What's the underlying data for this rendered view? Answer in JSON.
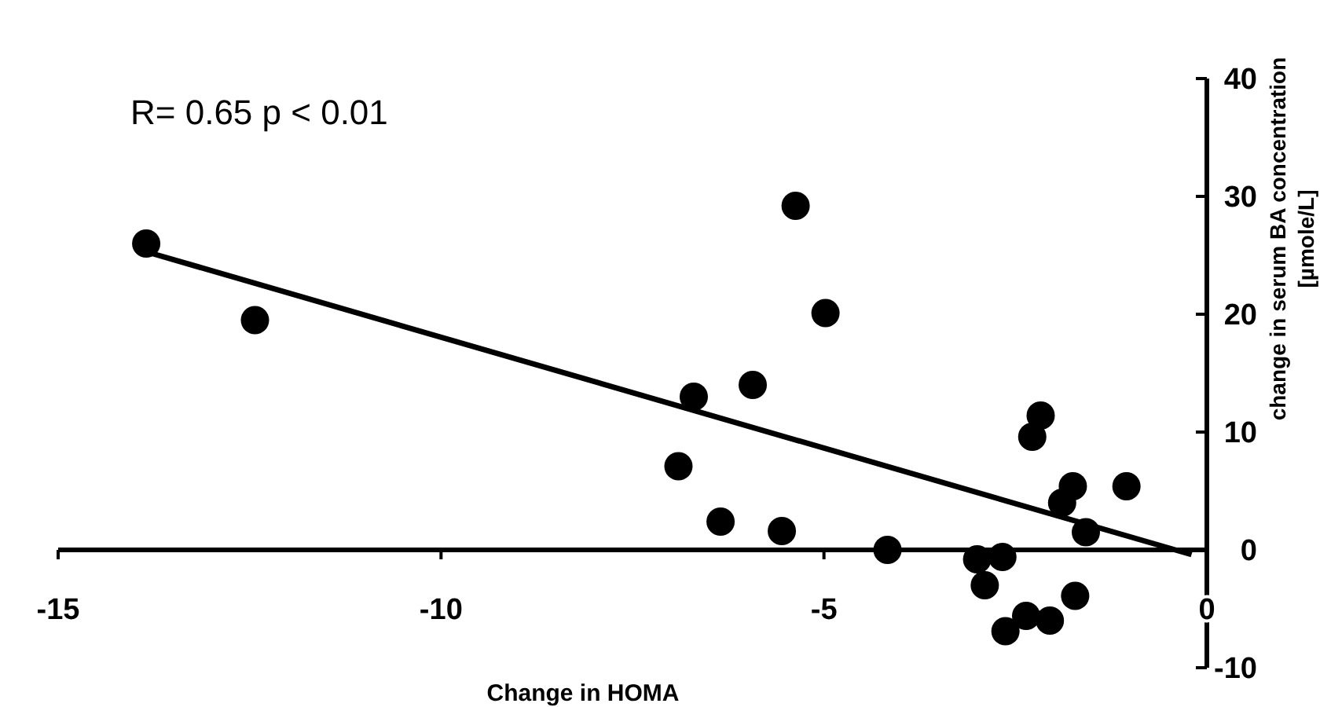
{
  "chart_data": {
    "type": "scatter",
    "xlabel": "Change in HOMA",
    "ylabel": "change in serum BA concentration\n[µmole/L]",
    "annotations": [
      "R= 0.65 p < 0.01"
    ],
    "xlim": [
      -15,
      0
    ],
    "xticks": [
      -15,
      -10,
      -5,
      0
    ],
    "ylim": [
      -10,
      40
    ],
    "yticks": [
      -10,
      0,
      10,
      20,
      30,
      40
    ],
    "grid": false,
    "series": [
      {
        "marker": "circle",
        "color": "#000000",
        "x": [
          -13.85,
          -12.43,
          -6.7,
          -5.93,
          -5.37,
          -4.98,
          -6.9,
          -6.35,
          -5.55,
          -4.17,
          -3.0,
          -2.9,
          -2.67,
          -2.63,
          -2.36,
          -2.05,
          -2.17,
          -2.28,
          -1.89,
          -1.75,
          -1.72,
          -1.58,
          -1.05
        ],
        "values": [
          26,
          19.5,
          13,
          14,
          29.2,
          20.1,
          7.1,
          2.4,
          1.6,
          0,
          -0.8,
          -3,
          -0.6,
          -6.9,
          -5.6,
          -6,
          11.4,
          9.6,
          4,
          5.4,
          -3.9,
          1.5,
          5.4
        ]
      },
      {
        "type": "line",
        "marker": "none",
        "color": "#000000",
        "line_style": "solid",
        "x": [
          -13.85,
          -0.2
        ],
        "values": [
          25.3,
          -0.4
        ]
      }
    ]
  }
}
